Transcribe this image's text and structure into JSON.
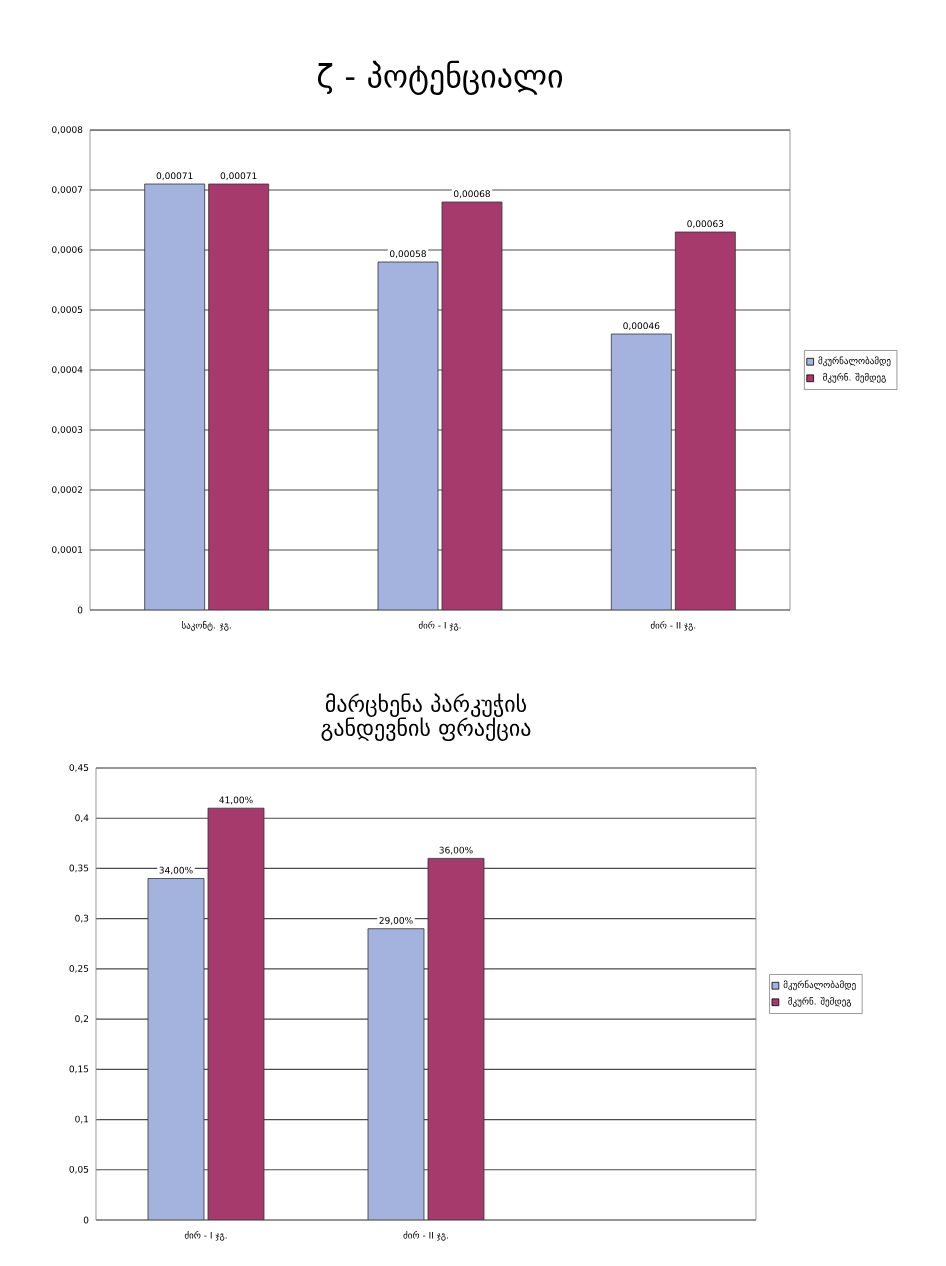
{
  "chart_data": [
    {
      "type": "bar",
      "title": "ζ - პოტენციალი",
      "categories": [
        "საკონტ. ჯგ.",
        "ძირ - I ჯგ.",
        "ძირ - II ჯგ."
      ],
      "series": [
        {
          "name": "მკურნალობამდე",
          "color": "#a3b3de",
          "values": [
            0.00071,
            0.00058,
            0.00046
          ],
          "value_labels": [
            "0,00071",
            "0,00058",
            "0,00046"
          ]
        },
        {
          "name": "მკურნ. შემდეგ",
          "color": "#a63a6c",
          "values": [
            0.00071,
            0.00068,
            0.00063
          ],
          "value_labels": [
            "0,00071",
            "0,00068",
            "0,00063"
          ]
        }
      ],
      "ylim": [
        0,
        0.0008
      ],
      "yticks": [
        0,
        {
          "value": 0.0001,
          "label": "0,0001"
        },
        {
          "value": 0.0002,
          "label": "0,0002"
        },
        {
          "value": 0.0003,
          "label": "0,0003"
        },
        {
          "value": 0.0004,
          "label": "0,0004"
        },
        {
          "value": 0.0005,
          "label": "0,0005"
        },
        {
          "value": 0.0006,
          "label": "0,0006"
        },
        {
          "value": 0.0007,
          "label": "0,0007"
        },
        {
          "value": 0.0008,
          "label": "0,0008"
        }
      ],
      "grid": "y",
      "legend": "right"
    },
    {
      "type": "bar",
      "title": "მარცხენა პარკუჭის განდევნის ფრაქცია",
      "categories": [
        "ძირ - I ჯგ.",
        "ძირ - II ჯგ.",
        null
      ],
      "series": [
        {
          "name": "მკურნალობამდე",
          "color": "#a3b3de",
          "values": [
            0.34,
            0.29,
            null
          ],
          "value_labels": [
            "34,00%",
            "29,00%",
            null
          ]
        },
        {
          "name": "მკურნ. შემდეგ",
          "color": "#a63a6c",
          "values": [
            0.41,
            0.36,
            null
          ],
          "value_labels": [
            "41,00%",
            "36,00%",
            null
          ]
        }
      ],
      "ylim": [
        0,
        0.45
      ],
      "yticks": [
        0,
        {
          "value": 0.05,
          "label": "0,05"
        },
        {
          "value": 0.1,
          "label": "0,1"
        },
        {
          "value": 0.15,
          "label": "0,15"
        },
        {
          "value": 0.2,
          "label": "0,2"
        },
        {
          "value": 0.25,
          "label": "0,25"
        },
        {
          "value": 0.3,
          "label": "0,3"
        },
        {
          "value": 0.35,
          "label": "0,35"
        },
        {
          "value": 0.4,
          "label": "0,4"
        },
        {
          "value": 0.45,
          "label": "0,45"
        }
      ],
      "grid": "y",
      "legend": "right"
    }
  ]
}
